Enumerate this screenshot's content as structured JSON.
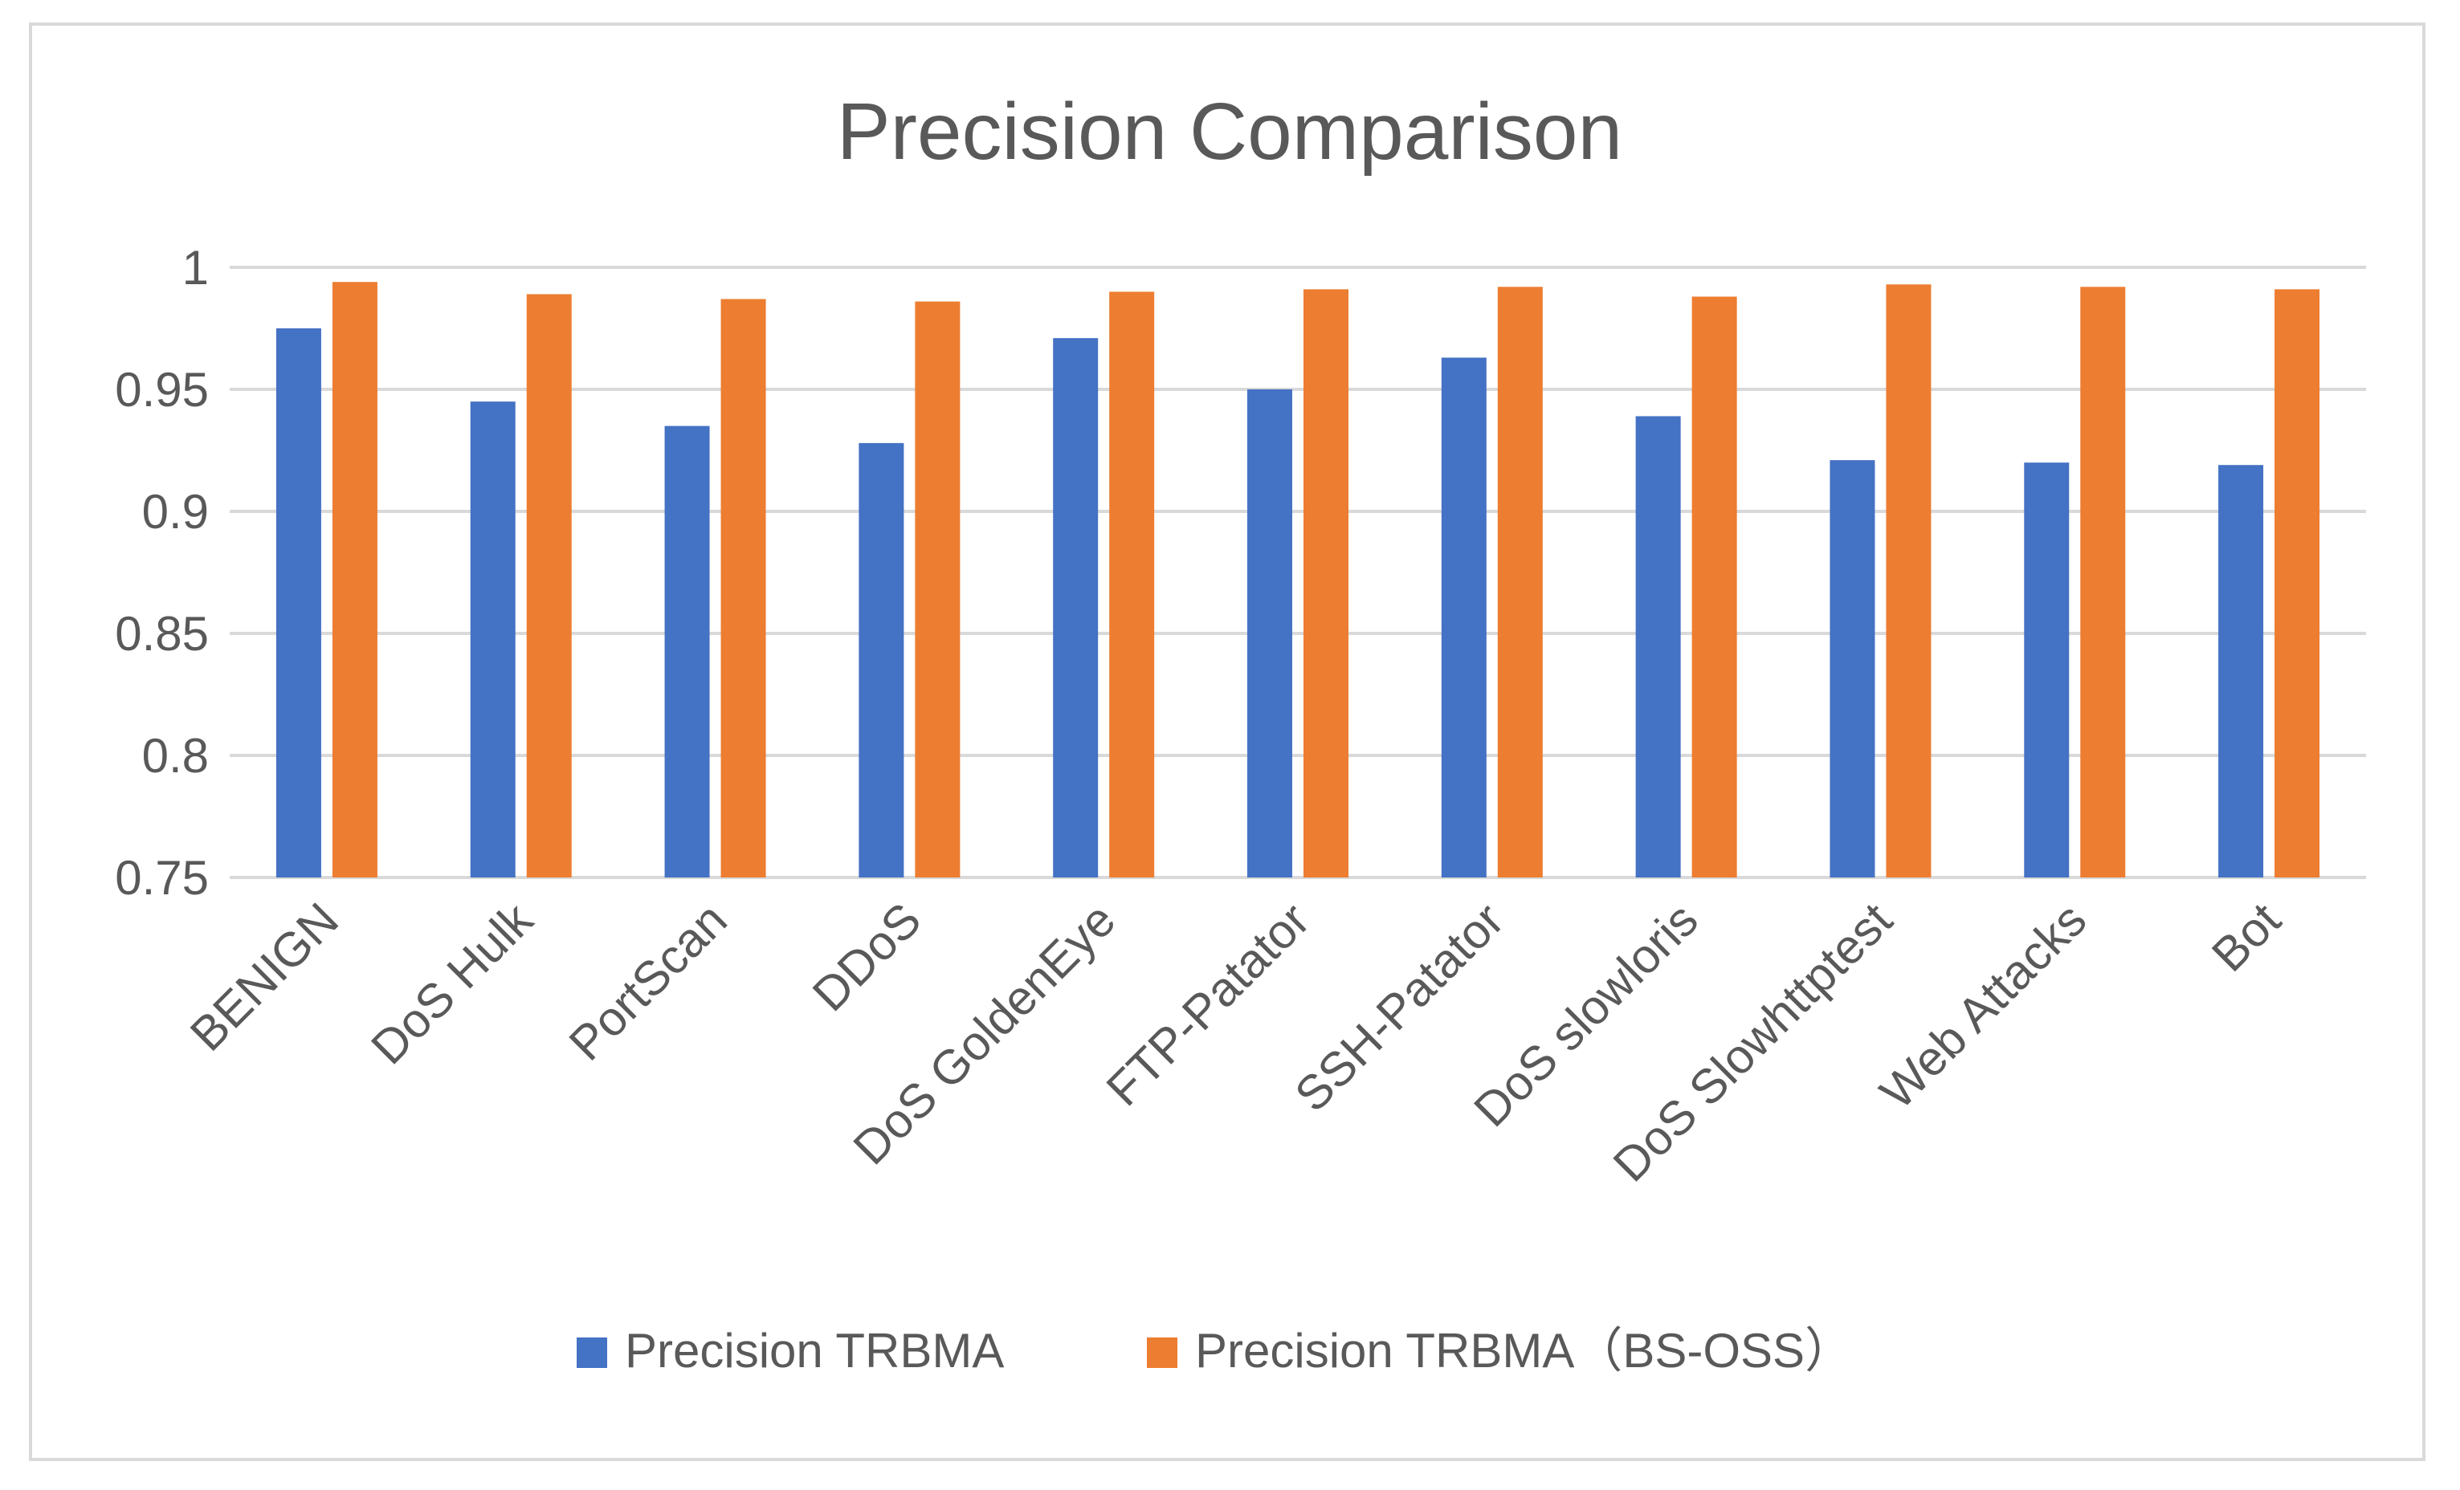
{
  "chart_data": {
    "type": "bar",
    "title": "Precision Comparison",
    "xlabel": "",
    "ylabel": "",
    "ylim": [
      0.75,
      1
    ],
    "yticks": [
      0.75,
      0.8,
      0.85,
      0.9,
      0.95,
      1
    ],
    "ytick_labels": [
      "0.75",
      "0.8",
      "0.85",
      "0.9",
      "0.95",
      "1"
    ],
    "grid": true,
    "legend_position": "bottom",
    "categories": [
      "BENIGN",
      "DoS Hulk",
      "PortScan",
      "DDoS",
      "DoS GoldenEye",
      "FTP-Patator",
      "SSH-Patator",
      "DoS slowloris",
      "DoS Slowhttptest",
      "Web Attacks",
      "Bot"
    ],
    "series": [
      {
        "name": "Precision TRBMA",
        "color": "#4472c4",
        "values": [
          0.975,
          0.945,
          0.935,
          0.928,
          0.971,
          0.95,
          0.963,
          0.939,
          0.921,
          0.92,
          0.919
        ]
      },
      {
        "name": "Precision TRBMA（BS-OSS）",
        "color": "#ed7d31",
        "values": [
          0.994,
          0.989,
          0.987,
          0.986,
          0.99,
          0.991,
          0.992,
          0.988,
          0.993,
          0.992,
          0.991
        ]
      }
    ]
  }
}
